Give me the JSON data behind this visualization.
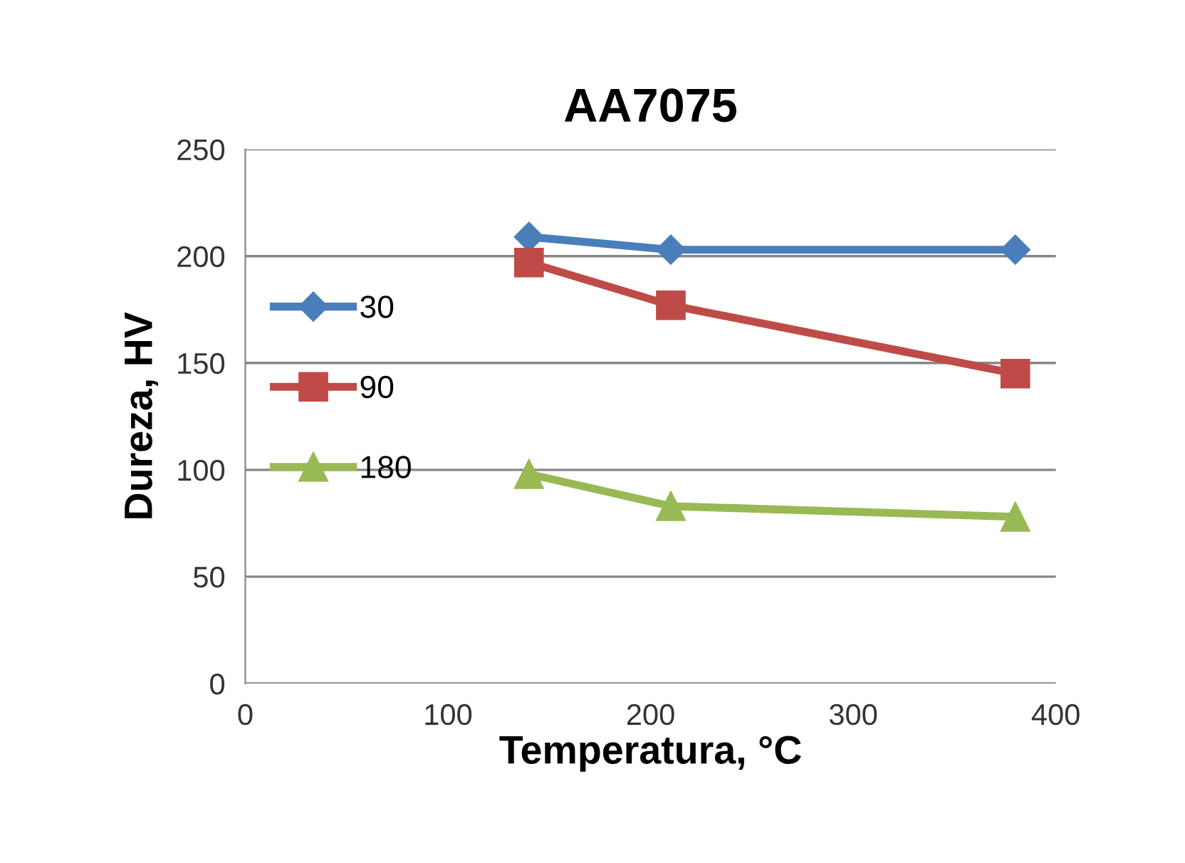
{
  "chart_data": {
    "type": "line",
    "title": "AA7075",
    "xlabel": "Temperatura, °C",
    "ylabel": "Dureza, HV",
    "x": [
      140,
      210,
      380
    ],
    "series": [
      {
        "name": "30",
        "color": "#4a7ebb",
        "marker": "diamond",
        "values": [
          209,
          203,
          203
        ]
      },
      {
        "name": "90",
        "color": "#be4b48",
        "marker": "square",
        "values": [
          197,
          177,
          145
        ]
      },
      {
        "name": "180",
        "color": "#98b954",
        "marker": "triangle",
        "values": [
          98,
          83,
          78
        ]
      }
    ],
    "xlim": [
      0,
      400
    ],
    "xticks": [
      0,
      100,
      200,
      300,
      400
    ],
    "ylim": [
      0,
      250
    ],
    "yticks": [
      0,
      50,
      100,
      150,
      200,
      250
    ],
    "grid": "y",
    "legend": "left"
  }
}
